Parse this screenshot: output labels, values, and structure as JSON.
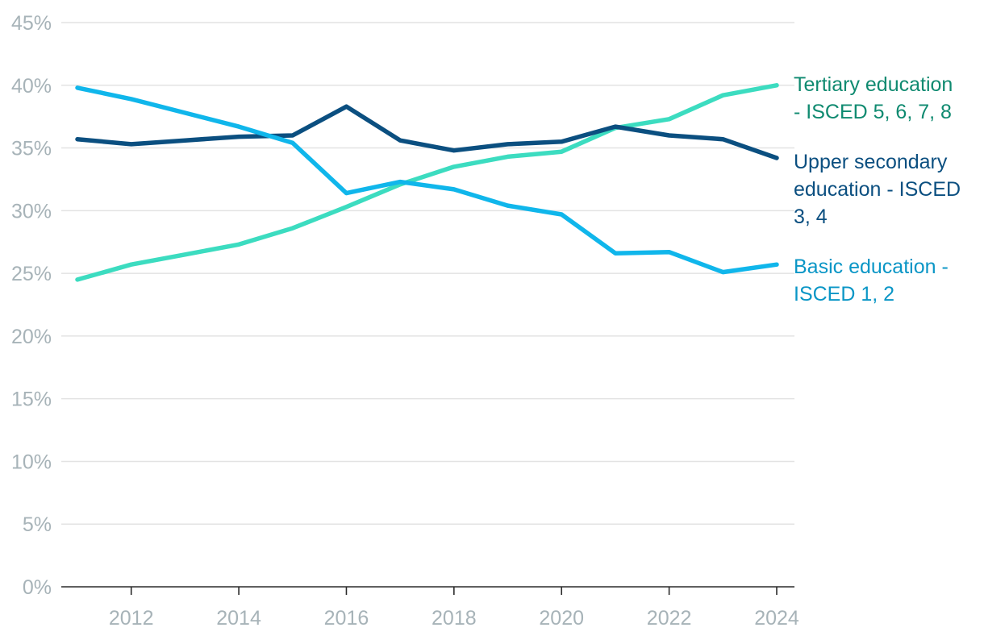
{
  "chart_data": {
    "type": "line",
    "title": "",
    "xlabel": "",
    "ylabel": "",
    "x": [
      2011,
      2012,
      2013,
      2014,
      2015,
      2016,
      2017,
      2018,
      2019,
      2020,
      2021,
      2022,
      2023,
      2024
    ],
    "xlim": [
      2011,
      2024
    ],
    "ylim": [
      0,
      45
    ],
    "y_ticks": [
      "0%",
      "5%",
      "10%",
      "15%",
      "20%",
      "25%",
      "30%",
      "35%",
      "40%",
      "45%"
    ],
    "x_ticks": [
      "2012",
      "2014",
      "2016",
      "2018",
      "2020",
      "2022",
      "2024"
    ],
    "grid": true,
    "legend": "direct labels at line ends (right)",
    "series": [
      {
        "name": "Tertiary education - ISCED 5, 6, 7, 8",
        "label_lines": [
          "Tertiary education",
          "- ISCED 5, 6, 7, 8"
        ],
        "color": "#3cdcc0",
        "label_color": "#0f8a70",
        "values": [
          24.5,
          25.7,
          26.5,
          27.3,
          28.6,
          30.3,
          32.1,
          33.5,
          34.3,
          34.7,
          36.6,
          37.3,
          39.2,
          40.0
        ]
      },
      {
        "name": "Upper secondary education - ISCED 3, 4",
        "label_lines": [
          "Upper secondary",
          "education - ISCED",
          "3, 4"
        ],
        "color": "#0b4f80",
        "label_color": "#0b4f80",
        "values": [
          35.7,
          35.3,
          35.6,
          35.9,
          36.0,
          38.3,
          35.6,
          34.8,
          35.3,
          35.5,
          36.7,
          36.0,
          35.7,
          34.2
        ]
      },
      {
        "name": "Basic education - ISCED 1, 2",
        "label_lines": [
          "Basic education -",
          "ISCED 1, 2"
        ],
        "color": "#10b6eb",
        "label_color": "#0a96c6",
        "values": [
          39.8,
          38.9,
          37.8,
          36.7,
          35.4,
          31.4,
          32.3,
          31.7,
          30.4,
          29.7,
          26.6,
          26.7,
          25.1,
          25.7
        ]
      }
    ]
  }
}
